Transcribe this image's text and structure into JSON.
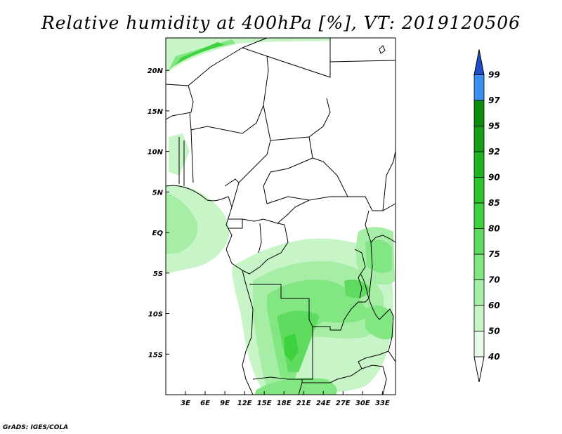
{
  "title": "Relative humidity at 400hPa [%], VT: 2019120506",
  "credit": "GrADS: IGES/COLA",
  "map": {
    "lon_range": [
      0,
      35
    ],
    "lat_range": [
      -20,
      24
    ],
    "lat_ticks": [
      {
        "value": 20,
        "label": "20N"
      },
      {
        "value": 15,
        "label": "15N"
      },
      {
        "value": 10,
        "label": "10N"
      },
      {
        "value": 5,
        "label": "5N"
      },
      {
        "value": 0,
        "label": "EQ"
      },
      {
        "value": -5,
        "label": "5S"
      },
      {
        "value": -10,
        "label": "10S"
      },
      {
        "value": -15,
        "label": "15S"
      }
    ],
    "lon_ticks": [
      {
        "value": 3,
        "label": "3E"
      },
      {
        "value": 6,
        "label": "6E"
      },
      {
        "value": 9,
        "label": "9E"
      },
      {
        "value": 12,
        "label": "12E"
      },
      {
        "value": 15,
        "label": "15E"
      },
      {
        "value": 18,
        "label": "18E"
      },
      {
        "value": 21,
        "label": "21E"
      },
      {
        "value": 24,
        "label": "24E"
      },
      {
        "value": 27,
        "label": "27E"
      },
      {
        "value": 30,
        "label": "30E"
      },
      {
        "value": 33,
        "label": "33E"
      }
    ]
  },
  "colorbar": {
    "levels": [
      {
        "label": "40",
        "color": "#e6fae6"
      },
      {
        "label": "50",
        "color": "#c8f5c8"
      },
      {
        "label": "60",
        "color": "#a6eea6"
      },
      {
        "label": "70",
        "color": "#82e682"
      },
      {
        "label": "75",
        "color": "#5fdc5f"
      },
      {
        "label": "80",
        "color": "#3fd23f"
      },
      {
        "label": "85",
        "color": "#2ec42e"
      },
      {
        "label": "90",
        "color": "#1fb41f"
      },
      {
        "label": "92",
        "color": "#159f15"
      },
      {
        "label": "95",
        "color": "#0c8c0c"
      },
      {
        "label": "97",
        "color": "#3b8ff0"
      },
      {
        "label": "99",
        "color": "#1f6fe0"
      }
    ],
    "top_arrow_color": "#1a4fc8",
    "bottom_color": "#ffffff"
  }
}
